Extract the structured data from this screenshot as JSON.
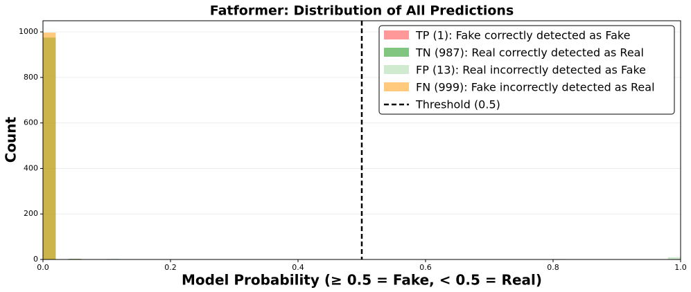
{
  "chart_data": {
    "type": "histogram",
    "title": "Fatformer: Distribution of All Predictions",
    "x_label": "Model Probability (≥ 0.5 = Fake, < 0.5 = Real)",
    "y_label": "Count",
    "bins": [
      0,
      0.02,
      0.04,
      0.06,
      0.08,
      0.1,
      0.12,
      0.14,
      0.16,
      0.18,
      0.2,
      0.22,
      0.24,
      0.26,
      0.28,
      0.3,
      0.32,
      0.34,
      0.36,
      0.38,
      0.4,
      0.42,
      0.44,
      0.46,
      0.48,
      0.5,
      0.52,
      0.54,
      0.56,
      0.58,
      0.6,
      0.62,
      0.64,
      0.66,
      0.68,
      0.7,
      0.72,
      0.74,
      0.76,
      0.78,
      0.8,
      0.82,
      0.84,
      0.86,
      0.88,
      0.9,
      0.92,
      0.94,
      0.96,
      0.98,
      1
    ],
    "alpha": 0.6,
    "series": [
      {
        "name": "TP (1): Fake correctly detected as Fake",
        "color": "#ff5555",
        "values": [
          0,
          0,
          0,
          0,
          0,
          0,
          0,
          0,
          0,
          0,
          0,
          0,
          0,
          0,
          0,
          0,
          0,
          0,
          0,
          0,
          0,
          0,
          0,
          0,
          0,
          0,
          0,
          0,
          0,
          0,
          0,
          0,
          0,
          0,
          0,
          0,
          0,
          0,
          0,
          0,
          0,
          0,
          0,
          0,
          0,
          0,
          0,
          0,
          0,
          1
        ]
      },
      {
        "name": "TN (987): Real correctly detected as Real",
        "color": "#2ca02c",
        "values": [
          975,
          0,
          3,
          0,
          0,
          2,
          0,
          0,
          0,
          1,
          0,
          0,
          0,
          0,
          1,
          0,
          0,
          0,
          0,
          0,
          1,
          0,
          0,
          0,
          0,
          0,
          0,
          0,
          1,
          0,
          1,
          0,
          0,
          0,
          0,
          0,
          0,
          0,
          0,
          1,
          0,
          0,
          0,
          0,
          1,
          0,
          0,
          0,
          0,
          0
        ]
      },
      {
        "name": "FP (13): Real incorrectly detected as Fake",
        "color": "#b0dcb0",
        "values": [
          0,
          0,
          0,
          0,
          0,
          0,
          0,
          0,
          0,
          0,
          0,
          0,
          0,
          0,
          0,
          0,
          0,
          0,
          0,
          0,
          0,
          0,
          0,
          0,
          0,
          0,
          0,
          0,
          0,
          0,
          1,
          0,
          0,
          0,
          0,
          0,
          0,
          0,
          0,
          0,
          2,
          0,
          0,
          0,
          0,
          0,
          0,
          0,
          0,
          10
        ]
      },
      {
        "name": "FN (999): Fake incorrectly detected as Real",
        "color": "#ffa726",
        "values": [
          997,
          0,
          2,
          0,
          0,
          0,
          0,
          0,
          0,
          0,
          0,
          0,
          0,
          0,
          0,
          0,
          0,
          0,
          0,
          0,
          0,
          0,
          0,
          0,
          0,
          0,
          0,
          0,
          0,
          0,
          0,
          0,
          0,
          0,
          0,
          0,
          0,
          0,
          0,
          0,
          0,
          0,
          0,
          0,
          0,
          0,
          0,
          0,
          0,
          0
        ]
      }
    ],
    "threshold": {
      "value": 0.5,
      "label": "Threshold (0.5)"
    },
    "xlim": [
      0,
      1
    ],
    "ylim": [
      0,
      1049
    ],
    "xticks": [
      {
        "value": 0,
        "label": "0.0"
      },
      0.2,
      0.4,
      0.6,
      0.8,
      {
        "value": 1,
        "label": "1.0"
      }
    ],
    "yticks": [
      0,
      200,
      400,
      600,
      800,
      1000
    ],
    "grid": true,
    "legend": "upper right"
  }
}
